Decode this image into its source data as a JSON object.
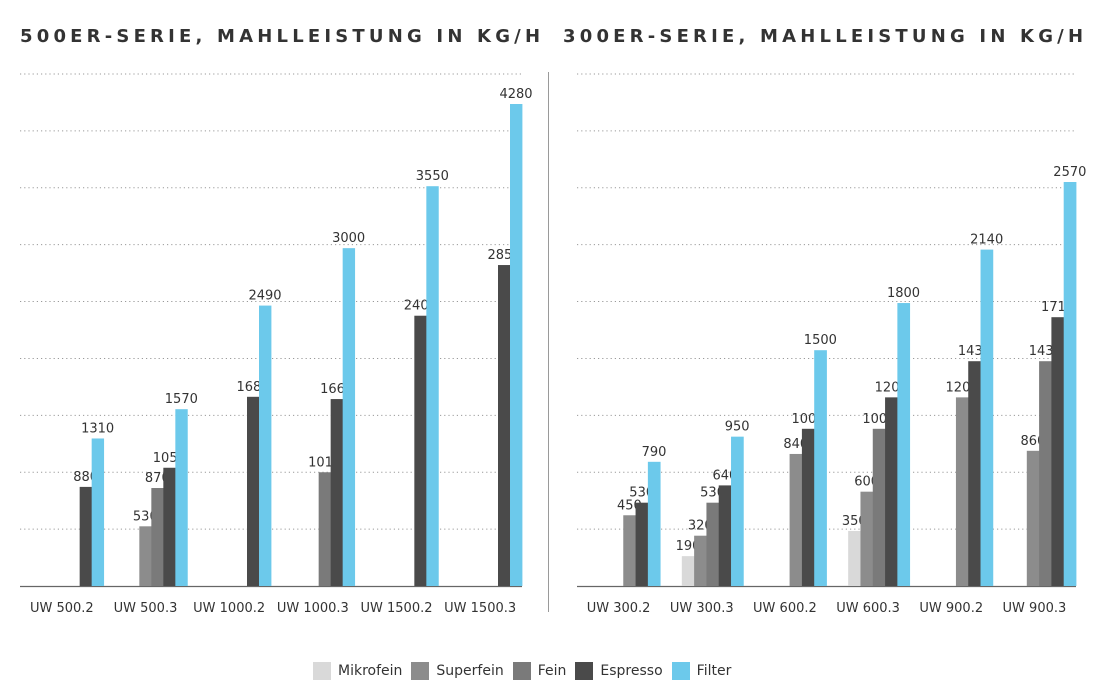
{
  "titles": {
    "left": "500ER-SERIE, MAHLLEISTUNG IN KG/H",
    "right": "300ER-SERIE, MAHLLEISTUNG IN KG/H"
  },
  "legend": [
    {
      "name": "Mikrofein",
      "color": "#d9d9d9"
    },
    {
      "name": "Superfein",
      "color": "#8c8c8c"
    },
    {
      "name": "Fein",
      "color": "#7a7a7a"
    },
    {
      "name": "Espresso",
      "color": "#4a4a4a"
    },
    {
      "name": "Filter",
      "color": "#6cc9eb"
    }
  ],
  "chart_data": [
    {
      "type": "bar",
      "title": "500ER-SERIE, MAHLLEISTUNG IN KG/H",
      "xlabel": "",
      "ylabel": "",
      "ylim": [
        0,
        4500
      ],
      "grid": true,
      "legend_placement": "bottom",
      "categories": [
        "UW 500.2",
        "UW 500.3",
        "UW 1000.2",
        "UW 1000.3",
        "UW 1500.2",
        "UW 1500.3"
      ],
      "series": [
        {
          "name": "Mikrofein",
          "values": [
            null,
            null,
            null,
            null,
            null,
            null
          ]
        },
        {
          "name": "Superfein",
          "values": [
            null,
            530,
            null,
            null,
            null,
            null
          ]
        },
        {
          "name": "Fein",
          "values": [
            null,
            870,
            null,
            1010,
            null,
            null
          ]
        },
        {
          "name": "Espresso",
          "values": [
            880,
            1050,
            1680,
            1660,
            2400,
            2850
          ]
        },
        {
          "name": "Filter",
          "values": [
            1310,
            1570,
            2490,
            3000,
            3550,
            4280
          ]
        }
      ]
    },
    {
      "type": "bar",
      "title": "300ER-SERIE, MAHLLEISTUNG IN KG/H",
      "xlabel": "",
      "ylabel": "",
      "ylim": [
        0,
        2700
      ],
      "grid": true,
      "legend_placement": "bottom",
      "categories": [
        "UW 300.2",
        "UW 300.3",
        "UW 600.2",
        "UW 600.3",
        "UW 900.2",
        "UW 900.3"
      ],
      "series": [
        {
          "name": "Mikrofein",
          "values": [
            null,
            190,
            null,
            350,
            null,
            null
          ]
        },
        {
          "name": "Superfein",
          "values": [
            450,
            320,
            840,
            600,
            1200,
            860
          ]
        },
        {
          "name": "Fein",
          "values": [
            null,
            530,
            null,
            1000,
            null,
            1430
          ]
        },
        {
          "name": "Espresso",
          "values": [
            530,
            640,
            1000,
            1200,
            1430,
            1710
          ]
        },
        {
          "name": "Filter",
          "values": [
            790,
            950,
            1500,
            1800,
            2140,
            2570
          ]
        }
      ]
    }
  ]
}
